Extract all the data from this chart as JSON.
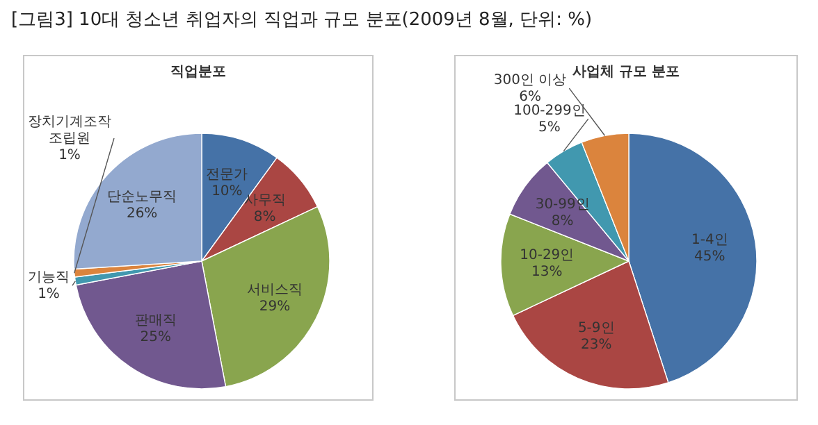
{
  "chart_data": [
    {
      "type": "pie",
      "title": "직업분포",
      "annotations": [
        "[그림3] 10대 청소년 취업자의 직업과 규모 분포(2009년 8월, 단위: %)"
      ],
      "categories": [
        "전문가",
        "사무직",
        "서비스직",
        "판매직",
        "기능직",
        "장치기계조작\n조립원",
        "단순노무직"
      ],
      "values": [
        10,
        8,
        29,
        25,
        1,
        1,
        26
      ],
      "value_labels": [
        "10%",
        "8%",
        "29%",
        "25%",
        "1%",
        "1%",
        "26%"
      ],
      "colors": [
        "#4572a7",
        "#aa4643",
        "#89a54e",
        "#71588f",
        "#4198af",
        "#db843d",
        "#93a9cf"
      ]
    },
    {
      "type": "pie",
      "title": "사업체 규모 분포",
      "categories": [
        "1-4인",
        "5-9인",
        "10-29인",
        "30-99인",
        "100-299인",
        "300인 이상"
      ],
      "values": [
        45,
        23,
        13,
        8,
        5,
        6
      ],
      "value_labels": [
        "45%",
        "23%",
        "13%",
        "8%",
        "5%",
        "6%"
      ],
      "colors": [
        "#4572a7",
        "#aa4643",
        "#89a54e",
        "#71588f",
        "#4198af",
        "#db843d"
      ]
    }
  ]
}
